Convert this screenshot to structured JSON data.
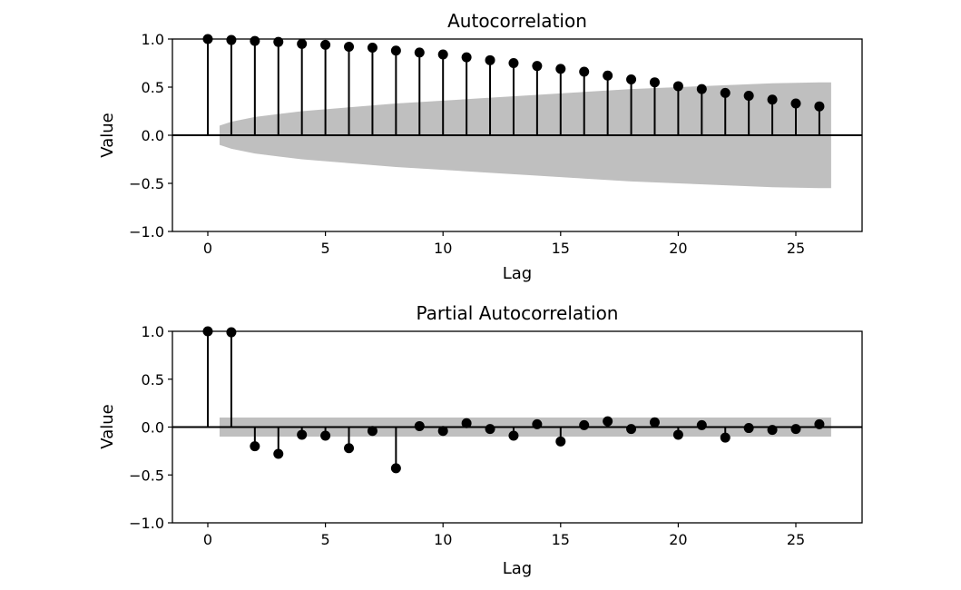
{
  "chart_data": [
    {
      "type": "stem",
      "title": "Autocorrelation",
      "xlabel": "Lag",
      "ylabel": "Value",
      "xlim": [
        -1.5,
        27.8
      ],
      "ylim": [
        -1.0,
        1.0
      ],
      "xticks": [
        0,
        5,
        10,
        15,
        20,
        25
      ],
      "yticks": [
        -1.0,
        -0.5,
        0.0,
        0.5,
        1.0
      ],
      "ytick_labels": [
        "−1.0",
        "−0.5",
        "0.0",
        "0.5",
        "1.0"
      ],
      "grid": false,
      "x": [
        0,
        1,
        2,
        3,
        4,
        5,
        6,
        7,
        8,
        9,
        10,
        11,
        12,
        13,
        14,
        15,
        16,
        17,
        18,
        19,
        20,
        21,
        22,
        23,
        24,
        25,
        26
      ],
      "values": [
        1.0,
        0.99,
        0.98,
        0.97,
        0.95,
        0.94,
        0.92,
        0.91,
        0.88,
        0.86,
        0.84,
        0.81,
        0.78,
        0.75,
        0.72,
        0.69,
        0.66,
        0.62,
        0.58,
        0.55,
        0.51,
        0.48,
        0.44,
        0.41,
        0.37,
        0.33,
        0.3
      ],
      "confidence_band": {
        "x": [
          0.5,
          1,
          2,
          3,
          4,
          5,
          6,
          8,
          10,
          12,
          14,
          16,
          18,
          20,
          22,
          24,
          26,
          26.5
        ],
        "upper": [
          0.1,
          0.14,
          0.19,
          0.22,
          0.25,
          0.27,
          0.29,
          0.33,
          0.36,
          0.39,
          0.42,
          0.45,
          0.48,
          0.5,
          0.52,
          0.54,
          0.55,
          0.55
        ],
        "lower": [
          -0.1,
          -0.14,
          -0.19,
          -0.22,
          -0.25,
          -0.27,
          -0.29,
          -0.33,
          -0.36,
          -0.39,
          -0.42,
          -0.45,
          -0.48,
          -0.5,
          -0.52,
          -0.54,
          -0.55,
          -0.55
        ],
        "color": "#bfbfbf"
      },
      "marker_color": "#000000"
    },
    {
      "type": "stem",
      "title": "Partial Autocorrelation",
      "xlabel": "Lag",
      "ylabel": "Value",
      "xlim": [
        -1.5,
        27.8
      ],
      "ylim": [
        -1.0,
        1.0
      ],
      "xticks": [
        0,
        5,
        10,
        15,
        20,
        25
      ],
      "yticks": [
        -1.0,
        -0.5,
        0.0,
        0.5,
        1.0
      ],
      "ytick_labels": [
        "−1.0",
        "−0.5",
        "0.0",
        "0.5",
        "1.0"
      ],
      "grid": false,
      "x": [
        0,
        1,
        2,
        3,
        4,
        5,
        6,
        7,
        8,
        9,
        10,
        11,
        12,
        13,
        14,
        15,
        16,
        17,
        18,
        19,
        20,
        21,
        22,
        23,
        24,
        25,
        26
      ],
      "values": [
        1.0,
        0.99,
        -0.2,
        -0.28,
        -0.08,
        -0.09,
        -0.22,
        -0.04,
        -0.43,
        0.01,
        -0.04,
        0.04,
        -0.02,
        -0.09,
        0.03,
        -0.15,
        0.02,
        0.06,
        -0.02,
        0.05,
        -0.08,
        0.02,
        -0.11,
        -0.01,
        -0.03,
        -0.02,
        0.03
      ],
      "confidence_band": {
        "x": [
          0.5,
          26.5
        ],
        "upper": [
          0.1,
          0.1
        ],
        "lower": [
          -0.1,
          -0.1
        ],
        "color": "#bfbfbf"
      },
      "marker_color": "#000000"
    }
  ]
}
